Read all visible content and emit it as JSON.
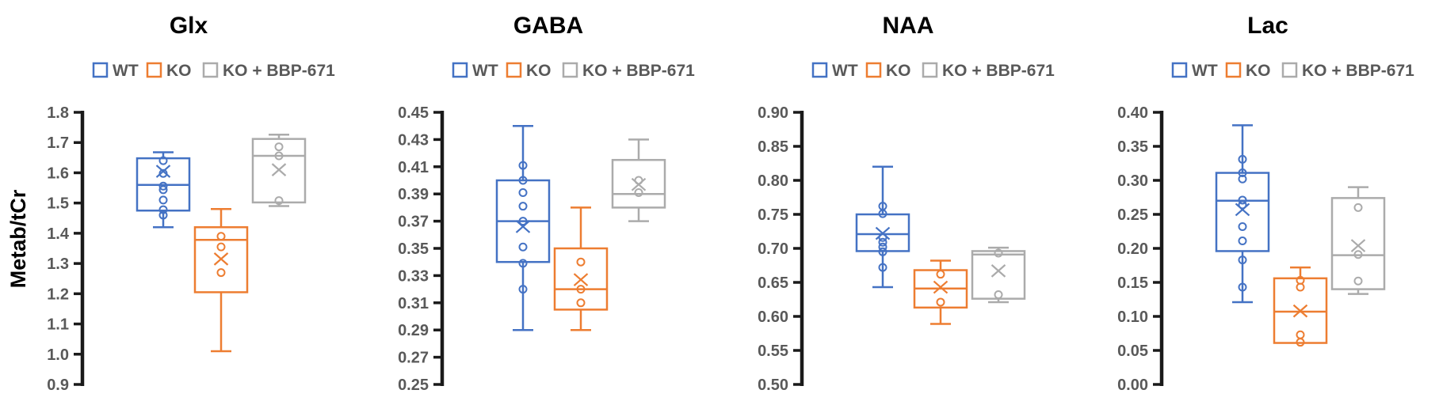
{
  "ylabel": "Metab/tCr",
  "legend": [
    {
      "label": "WT",
      "color": "#4472C4"
    },
    {
      "label": "KO",
      "color": "#ED7D31"
    },
    {
      "label": "KO + BBP-671",
      "color": "#ABABAB"
    }
  ],
  "axis_color": "#1a1a1a",
  "text_color": "#595959",
  "chart_data": [
    {
      "type": "box",
      "title": "Glx",
      "ylabel": "Metab/tCr",
      "ylim": [
        0.9,
        1.8
      ],
      "ytick_step": 0.1,
      "ytick_decimals": 1,
      "grid": false,
      "legend_position": "top",
      "groups": [
        {
          "series": "WT",
          "whisker_low": 1.42,
          "q1": 1.475,
          "median": 1.56,
          "q3": 1.648,
          "whisker_high": 1.668,
          "mean": 1.605,
          "points": [
            1.64,
            1.598,
            1.556,
            1.544,
            1.51,
            1.478,
            1.46
          ]
        },
        {
          "series": "KO",
          "whisker_low": 1.01,
          "q1": 1.205,
          "median": 1.378,
          "q3": 1.42,
          "whisker_high": 1.48,
          "mean": 1.315,
          "points": [
            1.39,
            1.355,
            1.27
          ]
        },
        {
          "series": "KO + BBP-671",
          "whisker_low": 1.49,
          "q1": 1.502,
          "median": 1.656,
          "q3": 1.712,
          "whisker_high": 1.726,
          "mean": 1.61,
          "points": [
            1.686,
            1.656,
            1.508
          ]
        }
      ]
    },
    {
      "type": "box",
      "title": "GABA",
      "ylabel": "Metab/tCr",
      "ylim": [
        0.25,
        0.45
      ],
      "ytick_step": 0.02,
      "ytick_decimals": 2,
      "grid": false,
      "legend_position": "top",
      "groups": [
        {
          "series": "WT",
          "whisker_low": 0.29,
          "q1": 0.34,
          "median": 0.37,
          "q3": 0.4,
          "whisker_high": 0.44,
          "mean": 0.366,
          "points": [
            0.411,
            0.4,
            0.391,
            0.381,
            0.37,
            0.351,
            0.339,
            0.32
          ]
        },
        {
          "series": "KO",
          "whisker_low": 0.29,
          "q1": 0.305,
          "median": 0.32,
          "q3": 0.35,
          "whisker_high": 0.38,
          "mean": 0.327,
          "points": [
            0.34,
            0.32,
            0.31
          ]
        },
        {
          "series": "KO + BBP-671",
          "whisker_low": 0.37,
          "q1": 0.38,
          "median": 0.39,
          "q3": 0.415,
          "whisker_high": 0.43,
          "mean": 0.397,
          "points": [
            0.4,
            0.391
          ]
        }
      ]
    },
    {
      "type": "box",
      "title": "NAA",
      "ylabel": "Metab/tCr",
      "ylim": [
        0.5,
        0.9
      ],
      "ytick_step": 0.05,
      "ytick_decimals": 2,
      "grid": false,
      "legend_position": "top",
      "groups": [
        {
          "series": "WT",
          "whisker_low": 0.643,
          "q1": 0.696,
          "median": 0.721,
          "q3": 0.75,
          "whisker_high": 0.82,
          "mean": 0.722,
          "points": [
            0.762,
            0.751,
            0.716,
            0.709,
            0.702,
            0.695,
            0.672
          ]
        },
        {
          "series": "KO",
          "whisker_low": 0.589,
          "q1": 0.613,
          "median": 0.641,
          "q3": 0.668,
          "whisker_high": 0.682,
          "mean": 0.643,
          "points": [
            0.662,
            0.621
          ]
        },
        {
          "series": "KO + BBP-671",
          "whisker_low": 0.621,
          "q1": 0.626,
          "median": 0.691,
          "q3": 0.696,
          "whisker_high": 0.701,
          "mean": 0.667,
          "points": [
            0.693,
            0.632
          ]
        }
      ]
    },
    {
      "type": "box",
      "title": "Lac",
      "ylabel": "Metab/tCr",
      "ylim": [
        0.0,
        0.4
      ],
      "ytick_step": 0.05,
      "ytick_decimals": 2,
      "grid": false,
      "legend_position": "top",
      "groups": [
        {
          "series": "WT",
          "whisker_low": 0.121,
          "q1": 0.196,
          "median": 0.27,
          "q3": 0.311,
          "whisker_high": 0.381,
          "mean": 0.257,
          "points": [
            0.331,
            0.311,
            0.302,
            0.271,
            0.264,
            0.232,
            0.211,
            0.183,
            0.143
          ]
        },
        {
          "series": "KO",
          "whisker_low": 0.061,
          "q1": 0.061,
          "median": 0.107,
          "q3": 0.156,
          "whisker_high": 0.172,
          "mean": 0.108,
          "points": [
            0.153,
            0.143,
            0.073,
            0.062
          ]
        },
        {
          "series": "KO + BBP-671",
          "whisker_low": 0.133,
          "q1": 0.14,
          "median": 0.19,
          "q3": 0.274,
          "whisker_high": 0.29,
          "mean": 0.204,
          "points": [
            0.26,
            0.191,
            0.152
          ]
        }
      ]
    }
  ]
}
